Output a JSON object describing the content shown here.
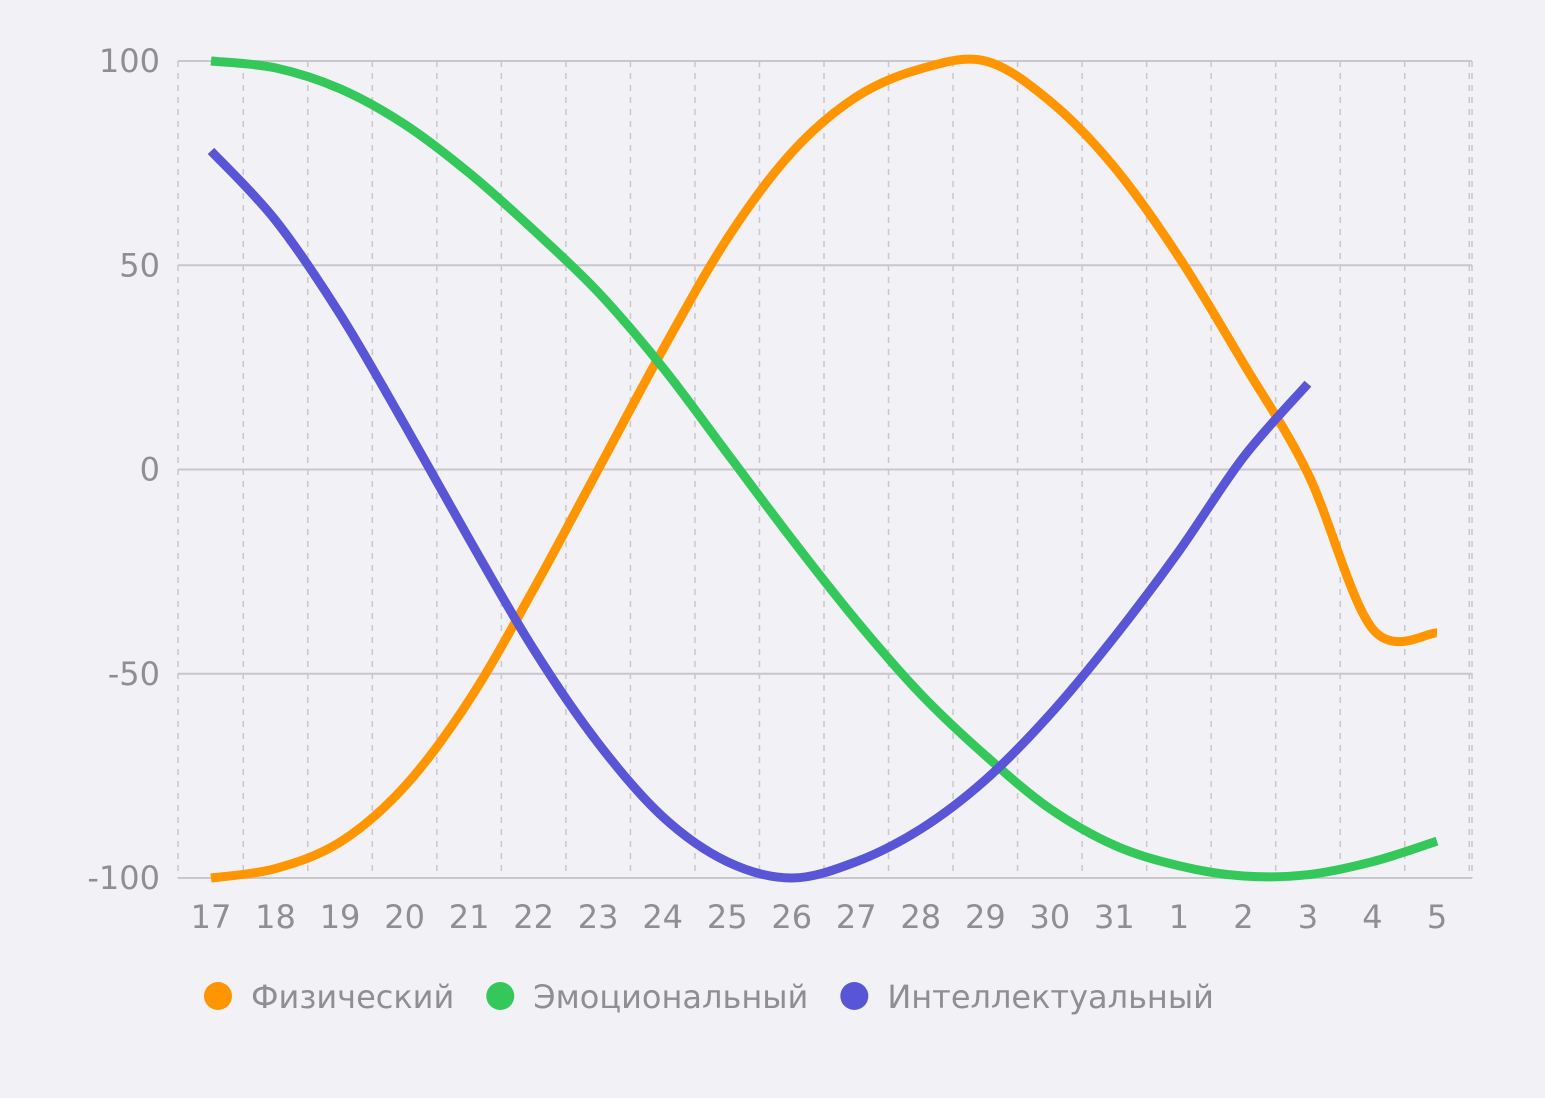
{
  "chart_data": {
    "type": "line",
    "title": "",
    "xlabel": "",
    "ylabel": "",
    "ylim": [
      -100,
      100
    ],
    "yticks": [
      100,
      50,
      0,
      -50,
      -100
    ],
    "x_tick_labels": [
      "17",
      "18",
      "19",
      "20",
      "21",
      "22",
      "23",
      "24",
      "25",
      "26",
      "27",
      "28",
      "29",
      "30",
      "31",
      "1",
      "2",
      "3",
      "4",
      "5"
    ],
    "grid": {
      "horizontal": "solid",
      "vertical": "dashed"
    },
    "legend_placement": "bottom-left",
    "series": [
      {
        "name": "Физический",
        "color": "#ff9500",
        "values": [
          -100,
          -97.7,
          -91.2,
          -77.6,
          -56.5,
          -29.3,
          0,
          29.3,
          56.5,
          77.6,
          91.2,
          98.1,
          100,
          90.2,
          74.0,
          52.0,
          26.0,
          -1.0,
          -39.0,
          -40.0
        ]
      },
      {
        "name": "Эмоциональный",
        "color": "#34c759",
        "values": [
          100,
          98.3,
          93.2,
          84.5,
          72.6,
          58.6,
          43.4,
          25.0,
          4.0,
          -17.0,
          -37.0,
          -55.0,
          -70.0,
          -83.0,
          -92.0,
          -97.0,
          -99.5,
          -99.2,
          -96.0,
          -91.0
        ]
      },
      {
        "name": "Интеллектуальный",
        "color": "#5856d6",
        "values": [
          78,
          61,
          38,
          11,
          -17,
          -44,
          -67,
          -85,
          -96,
          -100,
          -96,
          -88,
          -76,
          -60,
          -41,
          -20,
          3,
          21,
          null,
          null
        ]
      }
    ]
  }
}
